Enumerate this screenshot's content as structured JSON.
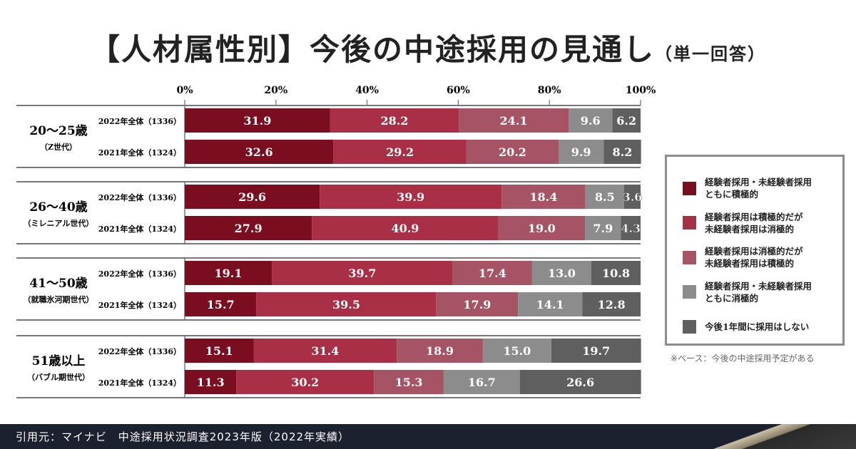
{
  "title": "【人材属性別】今後の中途採用の見通し",
  "subtitle": "（単一回答）",
  "chart_data": {
    "type": "bar",
    "orientation": "horizontal-stacked",
    "xlim": [
      0,
      100
    ],
    "xticks": [
      "0%",
      "20%",
      "40%",
      "60%",
      "80%",
      "100%"
    ],
    "groups": [
      {
        "label": "20～25歳",
        "sub": "（Z世代）",
        "rows": [
          {
            "label": "2022年全体（1336）",
            "values": [
              31.9,
              28.2,
              24.1,
              9.6,
              6.2
            ]
          },
          {
            "label": "2021年全体（1324）",
            "values": [
              32.6,
              29.2,
              20.2,
              9.9,
              8.2
            ]
          }
        ]
      },
      {
        "label": "26～40歳",
        "sub": "（ミレニアル世代）",
        "rows": [
          {
            "label": "2022年全体（1336）",
            "values": [
              29.6,
              39.9,
              18.4,
              8.5,
              3.6
            ]
          },
          {
            "label": "2021年全体（1324）",
            "values": [
              27.9,
              40.9,
              19.0,
              7.9,
              4.3
            ]
          }
        ]
      },
      {
        "label": "41～50歳",
        "sub": "（就職氷河期世代）",
        "rows": [
          {
            "label": "2022年全体（1336）",
            "values": [
              19.1,
              39.7,
              17.4,
              13.0,
              10.8
            ]
          },
          {
            "label": "2021年全体（1324）",
            "values": [
              15.7,
              39.5,
              17.9,
              14.1,
              12.8
            ]
          }
        ]
      },
      {
        "label": "51歳以上",
        "sub": "（バブル期世代）",
        "rows": [
          {
            "label": "2022年全体（1336）",
            "values": [
              15.1,
              31.4,
              18.9,
              15.0,
              19.7
            ]
          },
          {
            "label": "2021年全体（1324）",
            "values": [
              11.3,
              30.2,
              15.3,
              16.7,
              26.6
            ]
          }
        ]
      }
    ],
    "series": [
      {
        "name": "経験者採用・未経験者採用ともに積極的",
        "line1": "経験者採用・未経験者採用",
        "line2": "ともに積極的",
        "color": "#7a0e20"
      },
      {
        "name": "経験者採用は積極的だが未経験者採用は消極的",
        "line1": "経験者採用は積極的だが",
        "line2": "未経験者採用は消極的",
        "color": "#a82f45"
      },
      {
        "name": "経験者採用は消極的だが未経験者採用は積極的",
        "line1": "経験者採用は消極的だが",
        "line2": "未経験者採用は積極的",
        "color": "#a65465"
      },
      {
        "name": "経験者採用・未経験者採用ともに消極的",
        "line1": "経験者採用・未経験者採用",
        "line2": "ともに消極的",
        "color": "#8c8c8c"
      },
      {
        "name": "今後1年間に採用はしない",
        "line1": "今後1年間に採用はしない",
        "line2": "",
        "color": "#5f5f5f"
      }
    ],
    "legend_position": "right"
  },
  "note": "※ベース：今後の中途採用予定がある",
  "footer": "引用元：マイナビ　中途採用状況調査2023年版（2022年実績）"
}
